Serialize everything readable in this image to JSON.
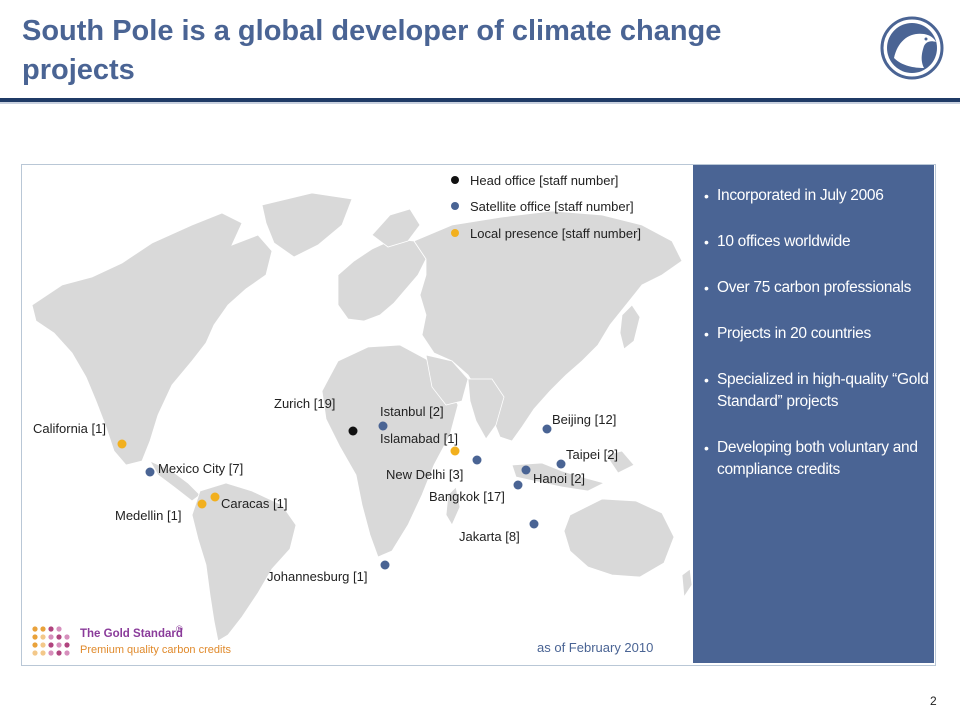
{
  "slide": {
    "title": "South Pole is a global developer of climate change projects",
    "page_number": "2",
    "as_of": "as of February 2010"
  },
  "legend": {
    "head_office": "Head office [staff number]",
    "satellite_office": "Satellite office [staff number]",
    "local_presence": "Local presence [staff number]"
  },
  "colors": {
    "title": "#4a6494",
    "head_office": "#111111",
    "satellite_office": "#4a6494",
    "local_presence": "#f2b01e",
    "panel": "#4a6494",
    "land": "#d8d8d8"
  },
  "locations": {
    "zurich": "Zurich [19]",
    "istanbul": "Istanbul [2]",
    "islamabad": "Islamabad [1]",
    "beijing": "Beijing [12]",
    "taipei": "Taipei [2]",
    "california": "California [1]",
    "mexico_city": "Mexico City [7]",
    "new_delhi": "New Delhi [3]",
    "hanoi": "Hanoi [2]",
    "bangkok": "Bangkok [17]",
    "caracas": "Caracas [1]",
    "medellin": "Medellin [1]",
    "jakarta": "Jakarta [8]",
    "johannesburg": "Johannesburg [1]"
  },
  "facts": [
    "Incorporated in July 2006",
    "10 offices worldwide",
    "Over 75 carbon professionals",
    "Projects in 20 countries",
    "Specialized in high-quality “Gold Standard” projects",
    "Developing both voluntary and compliance credits"
  ],
  "gold_standard": {
    "name": "The Gold Standard",
    "registered": "®",
    "tagline": "Premium quality carbon credits"
  }
}
